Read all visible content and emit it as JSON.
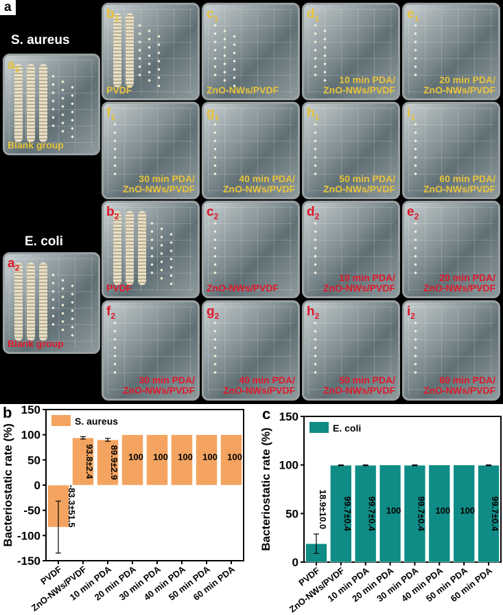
{
  "panel_labels": {
    "a": "a",
    "b": "b",
    "c": "c"
  },
  "photo": {
    "s_aureus": "S. aureus",
    "e_coli": "E. coli",
    "dishes": [
      {
        "id": "a1",
        "letter": "a",
        "sub": "1",
        "caption": "Blank group",
        "color": "#e9c33a"
      },
      {
        "id": "b1",
        "letter": "b",
        "sub": "1",
        "caption": "PVDF",
        "color": "#e9c33a"
      },
      {
        "id": "c1",
        "letter": "c",
        "sub": "1",
        "caption": "ZnO-NWs/PVDF",
        "color": "#e9c33a"
      },
      {
        "id": "d1",
        "letter": "d",
        "sub": "1",
        "caption": "10 min PDA/\nZnO-NWs/PVDF",
        "color": "#e9c33a"
      },
      {
        "id": "e1",
        "letter": "e",
        "sub": "1",
        "caption": "20 min PDA/\nZnO-NWs/PVDF",
        "color": "#e9c33a"
      },
      {
        "id": "f1",
        "letter": "f",
        "sub": "1",
        "caption": "30 min PDA/\nZnO-NWs/PVDF",
        "color": "#e9c33a"
      },
      {
        "id": "g1",
        "letter": "g",
        "sub": "1",
        "caption": "40 min PDA/\nZnO-NWs/PVDF",
        "color": "#e9c33a"
      },
      {
        "id": "h1",
        "letter": "h",
        "sub": "1",
        "caption": "50 min PDA/\nZnO-NWs/PVDF",
        "color": "#e9c33a"
      },
      {
        "id": "i1",
        "letter": "i",
        "sub": "1",
        "caption": "60 min PDA/\nZnO-NWs/PVDF",
        "color": "#e9c33a"
      },
      {
        "id": "a2",
        "letter": "a",
        "sub": "2",
        "caption": "Blank group",
        "color": "#e0182a"
      },
      {
        "id": "b2",
        "letter": "b",
        "sub": "2",
        "caption": "PVDF",
        "color": "#e0182a"
      },
      {
        "id": "c2",
        "letter": "c",
        "sub": "2",
        "caption": "ZnO-NWs/PVDF",
        "color": "#e0182a"
      },
      {
        "id": "d2",
        "letter": "d",
        "sub": "2",
        "caption": "10 min PDA/\nZnO-NWs/PVDF",
        "color": "#e0182a"
      },
      {
        "id": "e2",
        "letter": "e",
        "sub": "2",
        "caption": "20 min PDA/\nZnO-NWs/PVDF",
        "color": "#e0182a"
      },
      {
        "id": "f2",
        "letter": "f",
        "sub": "2",
        "caption": "30 min PDA/\nZnO-NWs/PVDF",
        "color": "#e0182a"
      },
      {
        "id": "g2",
        "letter": "g",
        "sub": "2",
        "caption": "40 min PDA/\nZnO-NWs/PVDF",
        "color": "#e0182a"
      },
      {
        "id": "h2",
        "letter": "h",
        "sub": "2",
        "caption": "50 min PDA/\nZnO-NWs/PVDF",
        "color": "#e0182a"
      },
      {
        "id": "i2",
        "letter": "i",
        "sub": "2",
        "caption": "60 min PDA/\nZnO-NWs/PVDF",
        "color": "#e0182a"
      }
    ]
  },
  "chart_data": [
    {
      "type": "bar",
      "panel": "b",
      "ylabel": "Bacteriostatic rate (%)",
      "ylim": [
        -150,
        150
      ],
      "yticks": [
        -150,
        -100,
        -50,
        0,
        50,
        100,
        150
      ],
      "legend": "S. aureus",
      "legend_position": "top-left",
      "bar_color": "#f4a460",
      "categories": [
        "PVDF",
        "ZnO-NWs/PVDF",
        "10 min PDA",
        "20 min PDA",
        "30 min PDA",
        "40 min PDA",
        "50 min PDA",
        "60 min PDA"
      ],
      "values": [
        -83.3,
        93.8,
        89.9,
        100,
        100,
        100,
        100,
        100
      ],
      "errors": [
        51.5,
        2.4,
        2.9,
        0,
        0,
        0,
        0,
        0
      ],
      "labels": [
        "-83.3±51.5",
        "93.8±2.4",
        "89.9±2.9",
        "100",
        "100",
        "100",
        "100",
        "100"
      ]
    },
    {
      "type": "bar",
      "panel": "c",
      "ylabel": "Bacteriostatic rate (%)",
      "ylim": [
        0,
        150
      ],
      "yticks": [
        0,
        50,
        100,
        150
      ],
      "legend": "E. coli",
      "legend_position": "top-left",
      "bar_color": "#0f8c86",
      "categories": [
        "PVDF",
        "ZnO-NWs/PVDF",
        "10 min PDA",
        "20 min PDA",
        "30 min PDA",
        "40 min PDA",
        "50 min PDA",
        "60 min PDA"
      ],
      "values": [
        18.9,
        99.7,
        99.7,
        100,
        99.7,
        100,
        100,
        99.7
      ],
      "errors": [
        10.0,
        0.4,
        0.4,
        0,
        0.4,
        0,
        0,
        0.4
      ],
      "labels": [
        "18.9±10.0",
        "99.7±0.4",
        "99.7±0.4",
        "100",
        "99.7±0.4",
        "100",
        "100",
        "99.7±0.4"
      ]
    }
  ]
}
